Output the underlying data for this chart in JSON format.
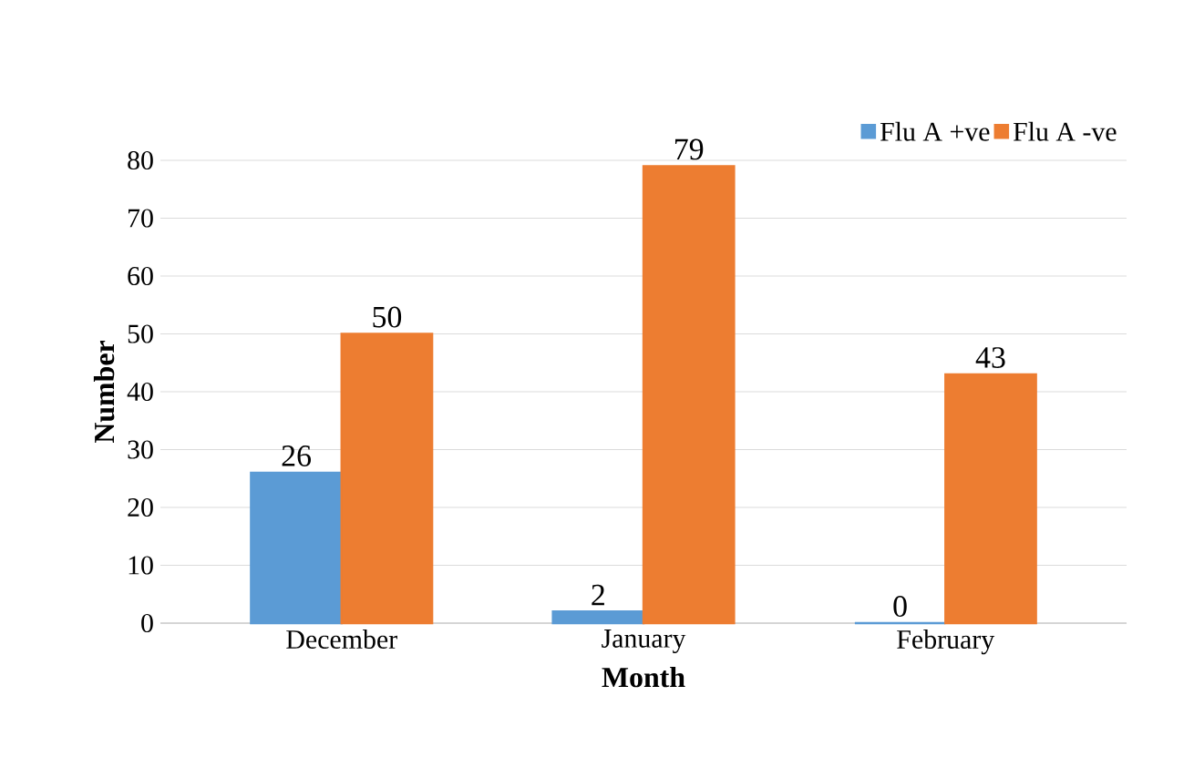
{
  "chart_data": {
    "type": "bar",
    "xlabel": "Month",
    "ylabel": "Number",
    "categories": [
      "December",
      "January",
      "February"
    ],
    "series": [
      {
        "name": "Flu A +ve",
        "color": "#5b9bd5",
        "values": [
          26,
          2,
          0
        ]
      },
      {
        "name": "Flu A -ve",
        "color": "#ed7d31",
        "values": [
          50,
          79,
          43
        ]
      }
    ],
    "ylim": [
      0,
      80
    ],
    "yticks": [
      0,
      10,
      20,
      30,
      40,
      50,
      60,
      70,
      80
    ],
    "grid": "y",
    "legend": "top right",
    "data_labels": true
  }
}
